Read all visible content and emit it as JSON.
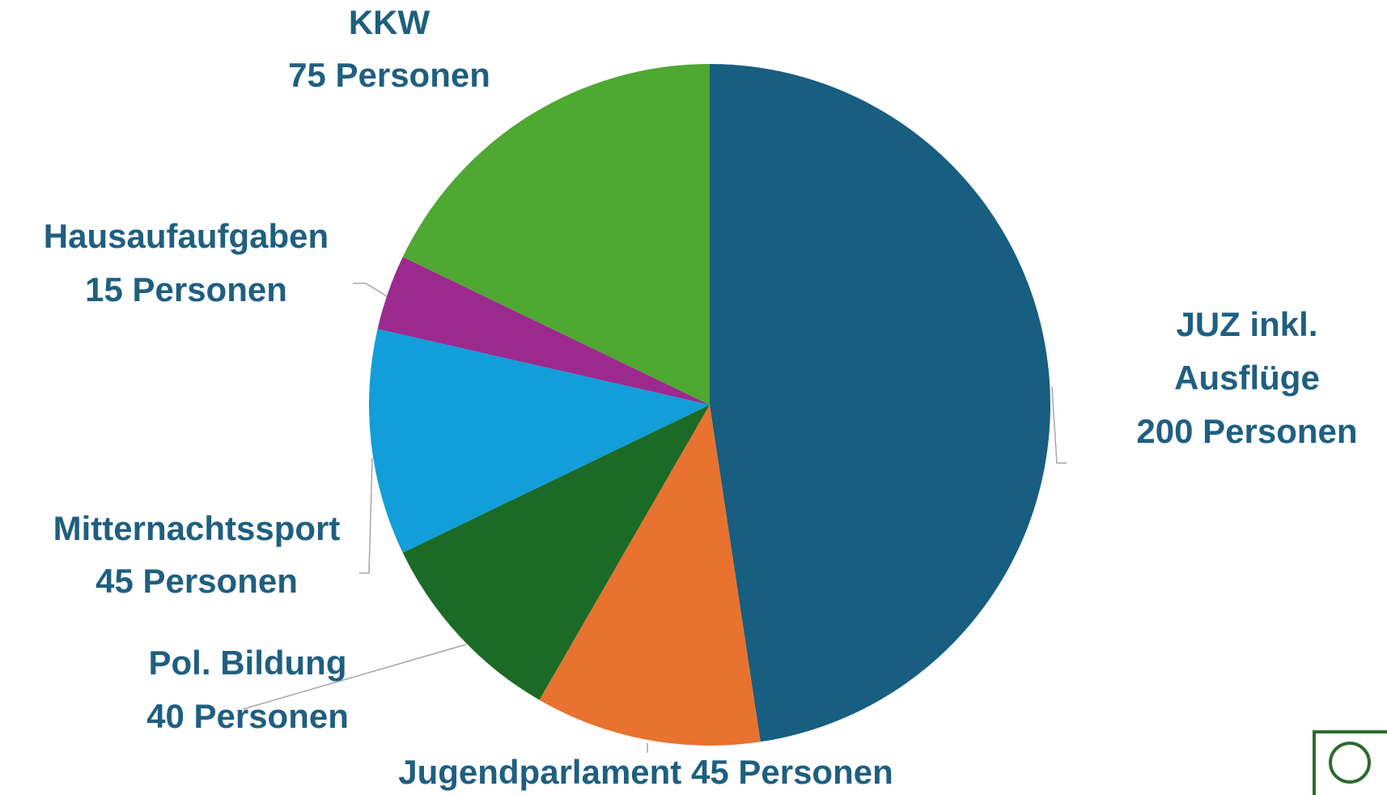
{
  "chart_data": {
    "type": "pie",
    "categories": [
      "JUZ inkl. Ausflüge",
      "Jugendparlament",
      "Pol. Bildung",
      "Mitternachtssport",
      "Hausaufaufgaben",
      "KKW"
    ],
    "values": [
      200,
      45,
      40,
      45,
      15,
      75
    ],
    "value_labels": [
      "200 Personen",
      "45 Personen",
      "40 Personen",
      "45 Personen",
      "15 Personen",
      "75 Personen"
    ],
    "colors": [
      "#175e80",
      "#e8722f",
      "#1b6b26",
      "#129ed8",
      "#9c2a8e",
      "#4ea832"
    ]
  }
}
